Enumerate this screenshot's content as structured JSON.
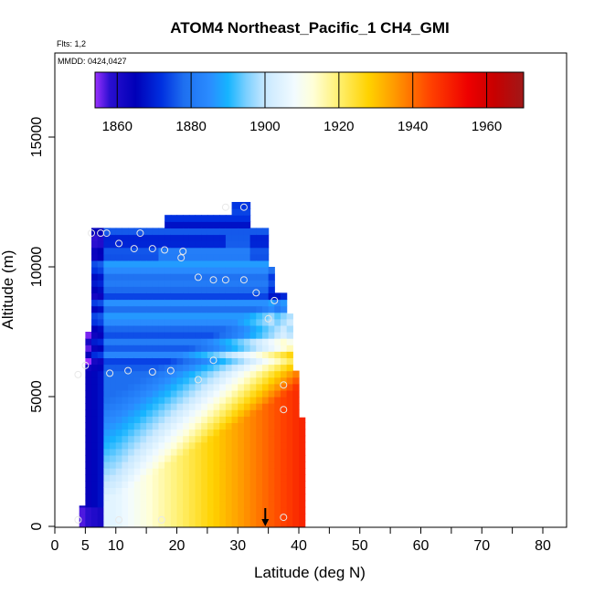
{
  "chart_data": {
    "type": "heatmap",
    "title": "ATOM4 Northeast_Pacific_1 CH4_GMI",
    "subtitle_flights": "Flts: 1,2",
    "subtitle_dates": "MMDD: 0424,0427",
    "xlabel": "Latitude (deg N)",
    "ylabel": "Altitude (m)",
    "xlim": [
      0,
      85
    ],
    "ylim": [
      0,
      18000
    ],
    "x_ticks": [
      0,
      5,
      10,
      20,
      30,
      40,
      50,
      60,
      70,
      80
    ],
    "x_minor_ticks": [
      15,
      25,
      35,
      45,
      55,
      65,
      75,
      85
    ],
    "y_ticks": [
      0,
      5000,
      10000,
      15000
    ],
    "colorbar": {
      "range": [
        1854,
        1970
      ],
      "ticks": [
        1860,
        1880,
        1900,
        1920,
        1940,
        1960
      ],
      "stops": [
        {
          "v": 1854,
          "c": "#9b30ff"
        },
        {
          "v": 1858,
          "c": "#2a0fd0"
        },
        {
          "v": 1865,
          "c": "#0000b8"
        },
        {
          "v": 1872,
          "c": "#0030e0"
        },
        {
          "v": 1878,
          "c": "#1e6ff0"
        },
        {
          "v": 1885,
          "c": "#2a8cff"
        },
        {
          "v": 1890,
          "c": "#16b4ff"
        },
        {
          "v": 1895,
          "c": "#7cd0ff"
        },
        {
          "v": 1900,
          "c": "#c8e8ff"
        },
        {
          "v": 1908,
          "c": "#f2fbff"
        },
        {
          "v": 1913,
          "c": "#ffffd8"
        },
        {
          "v": 1920,
          "c": "#fff070"
        },
        {
          "v": 1928,
          "c": "#ffd200"
        },
        {
          "v": 1935,
          "c": "#ff9a00"
        },
        {
          "v": 1945,
          "c": "#ff4000"
        },
        {
          "v": 1955,
          "c": "#ee0000"
        },
        {
          "v": 1962,
          "c": "#c80000"
        },
        {
          "v": 1970,
          "c": "#a01818"
        }
      ]
    },
    "grid": false,
    "legend": "colorbar-top",
    "field_model": {
      "lat_range": [
        4,
        40
      ],
      "surface_base": 1905,
      "surface_lat_gain": 1.45,
      "surface_lat_offset": 10,
      "low_lat_edge_value": 1862,
      "upper_tropo_value": 1878,
      "column_edges": [
        {
          "lat": 4,
          "top": 800
        },
        {
          "lat": 5,
          "top": 7500
        },
        {
          "lat": 6,
          "top": 11500
        },
        {
          "lat": 17,
          "top": 11500
        },
        {
          "lat": 17.5,
          "top": 12000
        },
        {
          "lat": 28,
          "top": 12000
        },
        {
          "lat": 28.5,
          "top": 12500
        },
        {
          "lat": 31.5,
          "top": 12500
        },
        {
          "lat": 32,
          "top": 11500
        },
        {
          "lat": 35,
          "top": 10000
        },
        {
          "lat": 36,
          "top": 9000
        },
        {
          "lat": 38,
          "top": 8200
        },
        {
          "lat": 39,
          "top": 6000
        },
        {
          "lat": 40,
          "top": 4200
        },
        {
          "lat": 41,
          "top": 0
        }
      ]
    },
    "obs_points": [
      {
        "lat": 28,
        "alt": 12300
      },
      {
        "lat": 31,
        "alt": 12300
      },
      {
        "lat": 6,
        "alt": 11300
      },
      {
        "lat": 7.5,
        "alt": 11300
      },
      {
        "lat": 8.5,
        "alt": 11300
      },
      {
        "lat": 10.5,
        "alt": 10900
      },
      {
        "lat": 14,
        "alt": 11300
      },
      {
        "lat": 13,
        "alt": 10700
      },
      {
        "lat": 16,
        "alt": 10700
      },
      {
        "lat": 18,
        "alt": 10650
      },
      {
        "lat": 21,
        "alt": 10600
      },
      {
        "lat": 20.7,
        "alt": 10350
      },
      {
        "lat": 23.5,
        "alt": 9600
      },
      {
        "lat": 26,
        "alt": 9500
      },
      {
        "lat": 28,
        "alt": 9500
      },
      {
        "lat": 31,
        "alt": 9500
      },
      {
        "lat": 33,
        "alt": 9000
      },
      {
        "lat": 36,
        "alt": 8700
      },
      {
        "lat": 35,
        "alt": 8000
      },
      {
        "lat": 3.8,
        "alt": 5850
      },
      {
        "lat": 5,
        "alt": 6200
      },
      {
        "lat": 9,
        "alt": 5900
      },
      {
        "lat": 12,
        "alt": 6000
      },
      {
        "lat": 16,
        "alt": 5950
      },
      {
        "lat": 19,
        "alt": 6000
      },
      {
        "lat": 23.5,
        "alt": 5650
      },
      {
        "lat": 26,
        "alt": 6400
      },
      {
        "lat": 37.5,
        "alt": 5450
      },
      {
        "lat": 37.5,
        "alt": 4500
      },
      {
        "lat": 3.8,
        "alt": 250
      },
      {
        "lat": 10.5,
        "alt": 250
      },
      {
        "lat": 17.5,
        "alt": 250
      },
      {
        "lat": 37.5,
        "alt": 350
      }
    ],
    "site_marker": {
      "lat": 34.5,
      "alt": 0,
      "symbol": "down-arrow"
    }
  }
}
